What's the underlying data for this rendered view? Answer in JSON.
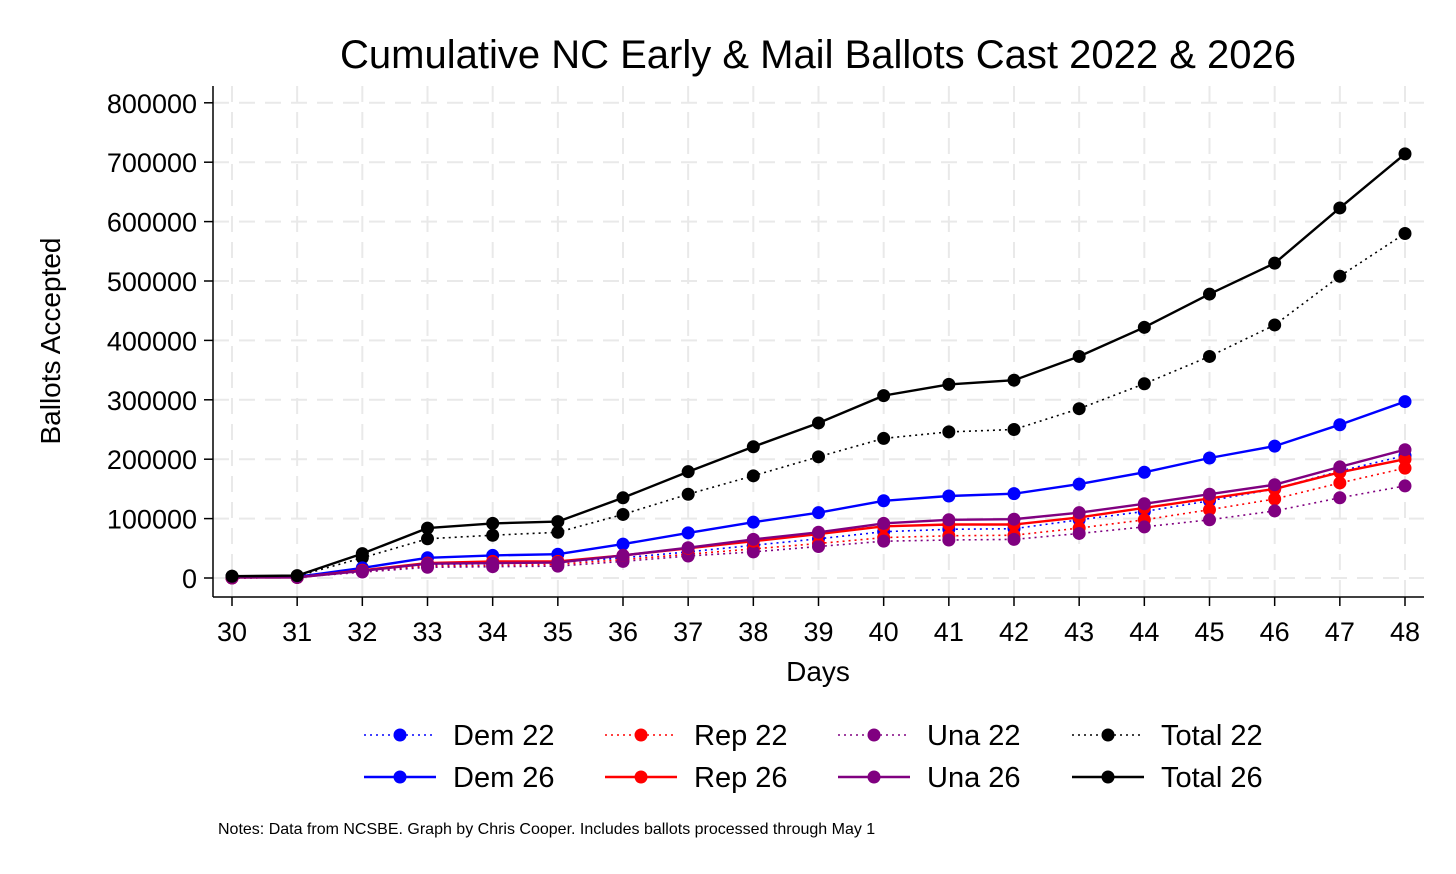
{
  "chart_data": {
    "type": "line",
    "title": "Cumulative NC Early & Mail Ballots Cast 2022 & 2026",
    "xlabel": "Days",
    "ylabel": "Ballots Accepted",
    "x": [
      30,
      31,
      32,
      33,
      34,
      35,
      36,
      37,
      38,
      39,
      40,
      41,
      42,
      43,
      44,
      45,
      46,
      47,
      48
    ],
    "xlim": [
      30,
      48
    ],
    "ylim": [
      -30000,
      840000
    ],
    "yticks": [
      0,
      100000,
      200000,
      300000,
      400000,
      500000,
      600000,
      700000,
      800000
    ],
    "grid": true,
    "legend_position": "bottom",
    "series": [
      {
        "name": "Dem 22",
        "color": "#0000ff",
        "style": "dotted",
        "values": [
          0,
          1000,
          12000,
          22000,
          24000,
          26000,
          34000,
          44000,
          55000,
          66000,
          78000,
          82000,
          83000,
          98000,
          112000,
          130000,
          150000,
          180000,
          206000
        ]
      },
      {
        "name": "Dem 26",
        "color": "#0000ff",
        "style": "solid",
        "values": [
          2000,
          2000,
          17000,
          34000,
          38000,
          40000,
          57000,
          76000,
          94000,
          110000,
          130000,
          138000,
          142000,
          158000,
          178000,
          202000,
          222000,
          258000,
          297000
        ]
      },
      {
        "name": "Rep 22",
        "color": "#ff0000",
        "style": "dotted",
        "values": [
          0,
          1000,
          11000,
          20000,
          21000,
          23000,
          31000,
          40000,
          49000,
          58000,
          68000,
          71000,
          72000,
          84000,
          98000,
          115000,
          133000,
          160000,
          185000
        ]
      },
      {
        "name": "Rep 26",
        "color": "#ff0000",
        "style": "solid",
        "values": [
          1000,
          1000,
          13000,
          25000,
          28000,
          28000,
          38000,
          50000,
          62000,
          74000,
          87000,
          90000,
          90000,
          102000,
          118000,
          134000,
          150000,
          178000,
          200000
        ]
      },
      {
        "name": "Una 22",
        "color": "#800080",
        "style": "dotted",
        "values": [
          0,
          1000,
          10000,
          18000,
          19000,
          20000,
          28000,
          37000,
          44000,
          53000,
          62000,
          64000,
          65000,
          75000,
          86000,
          98000,
          113000,
          135000,
          155000
        ]
      },
      {
        "name": "Una 26",
        "color": "#800080",
        "style": "solid",
        "values": [
          1000,
          1000,
          12000,
          24000,
          25000,
          26000,
          38000,
          51000,
          65000,
          77000,
          92000,
          98000,
          99000,
          110000,
          125000,
          141000,
          157000,
          187000,
          216000
        ]
      },
      {
        "name": "Total 22",
        "color": "#000000",
        "style": "dotted",
        "values": [
          3000,
          3000,
          34000,
          66000,
          72000,
          77000,
          107000,
          141000,
          172000,
          204000,
          235000,
          246000,
          250000,
          285000,
          327000,
          373000,
          426000,
          508000,
          580000
        ]
      },
      {
        "name": "Total 26",
        "color": "#000000",
        "style": "solid",
        "values": [
          3000,
          4000,
          41000,
          84000,
          92000,
          95000,
          135000,
          179000,
          221000,
          261000,
          307000,
          326000,
          333000,
          373000,
          422000,
          478000,
          530000,
          623000,
          714000
        ]
      }
    ],
    "legend": [
      {
        "label": "Dem 22",
        "series": "Dem 22"
      },
      {
        "label": "Rep 22",
        "series": "Rep 22"
      },
      {
        "label": "Una 22",
        "series": "Una 22"
      },
      {
        "label": "Total 22",
        "series": "Total 22"
      },
      {
        "label": "Dem 26",
        "series": "Dem 26"
      },
      {
        "label": "Rep 26",
        "series": "Rep 26"
      },
      {
        "label": "Una 26",
        "series": "Una 26"
      },
      {
        "label": "Total 26",
        "series": "Total 26"
      }
    ],
    "note": "Notes: Data from NCSBE. Graph by Chris Cooper. Includes ballots processed through May 1"
  }
}
